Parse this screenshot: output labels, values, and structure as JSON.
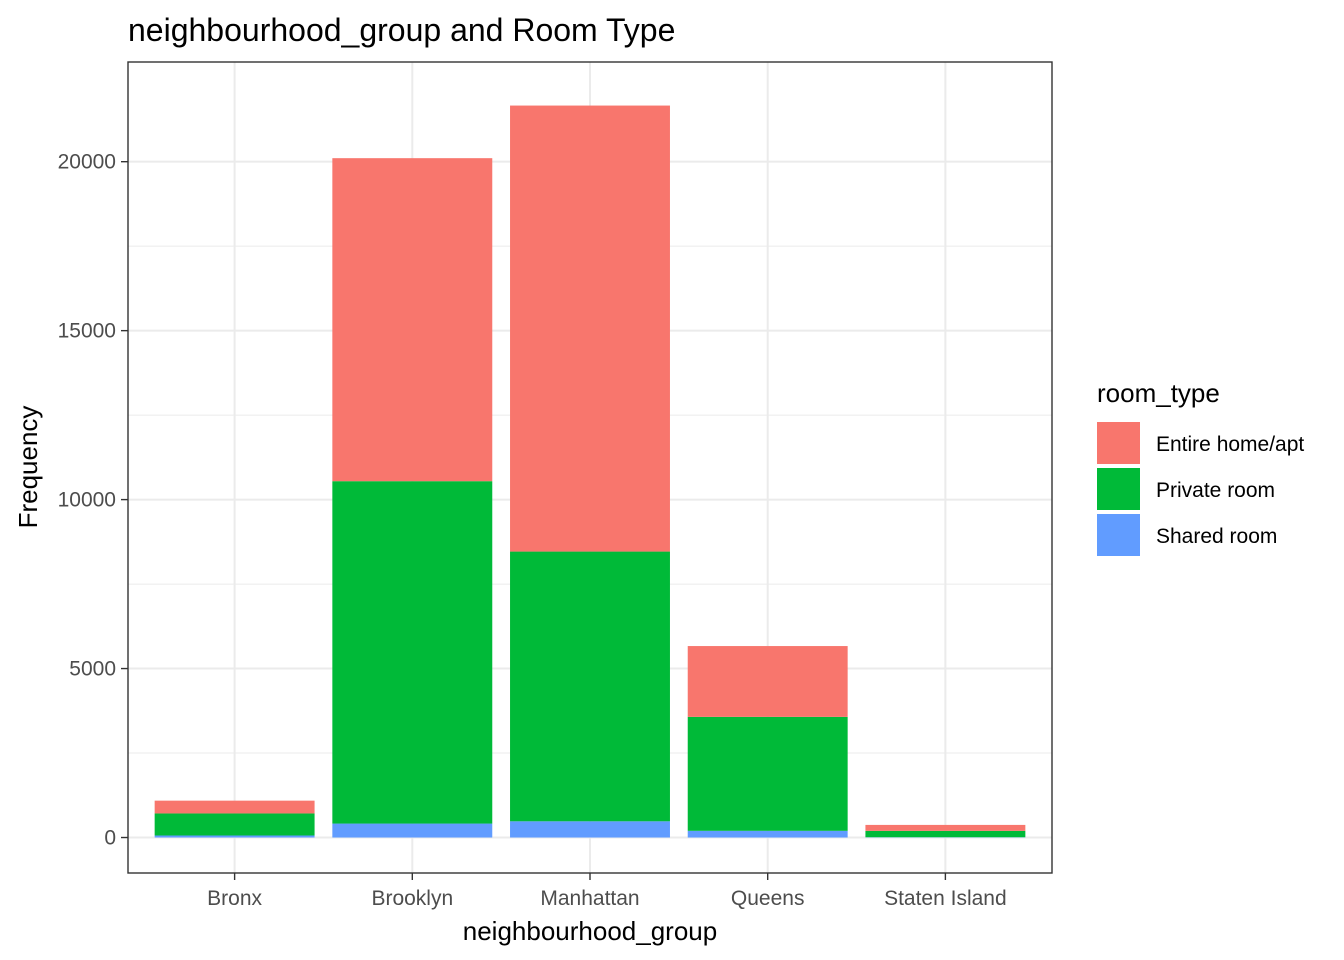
{
  "chart_data": {
    "type": "bar",
    "stacked": true,
    "title": "neighbourhood_group and Room Type",
    "xlabel": "neighbourhood_group",
    "ylabel": "Frequency",
    "categories": [
      "Bronx",
      "Brooklyn",
      "Manhattan",
      "Queens",
      "Staten Island"
    ],
    "series": [
      {
        "name": "Shared room",
        "color": "#619CFF",
        "values": [
          60,
          413,
          480,
          198,
          9
        ]
      },
      {
        "name": "Private room",
        "color": "#00BA38",
        "values": [
          652,
          10132,
          7982,
          3372,
          188
        ]
      },
      {
        "name": "Entire home/apt",
        "color": "#F8766D",
        "values": [
          379,
          9559,
          13199,
          2096,
          176
        ]
      }
    ],
    "ylim": [
      -1050,
      22950
    ],
    "yticks": [
      0,
      5000,
      10000,
      15000,
      20000
    ],
    "grid": true,
    "legend": {
      "title": "room_type",
      "position": "right",
      "items": [
        "Entire home/apt",
        "Private room",
        "Shared room"
      ]
    }
  }
}
